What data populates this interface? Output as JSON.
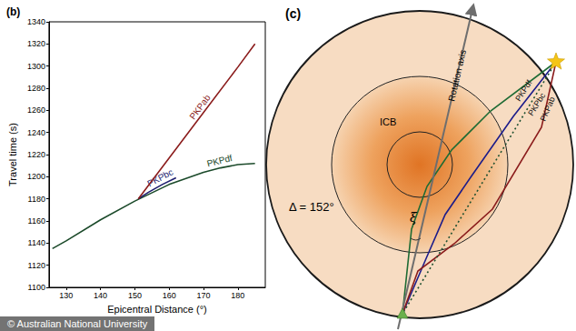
{
  "chart_data": {
    "type": "line",
    "title": "(b)",
    "x_label": "Epicentral Distance (°)",
    "y_label": "Travel time (s)",
    "xlim": [
      125,
      188
    ],
    "xticks": [
      130,
      140,
      150,
      160,
      170,
      180
    ],
    "ylim": [
      1100,
      1340
    ],
    "yticks": [
      1100,
      1120,
      1140,
      1160,
      1180,
      1200,
      1220,
      1240,
      1260,
      1280,
      1300,
      1320,
      1340
    ],
    "grid": false,
    "series": [
      {
        "name": "PKPab",
        "color": "#8b1c1c",
        "x": [
          151,
          160,
          170,
          180,
          185
        ],
        "values": [
          1180,
          1217,
          1258,
          1299,
          1320
        ]
      },
      {
        "name": "PKPbc",
        "color": "#1c1c6e",
        "x": [
          151,
          154,
          158,
          162
        ],
        "values": [
          1180,
          1186,
          1193,
          1199
        ]
      },
      {
        "name": "PKPdf",
        "color": "#1b4a2a",
        "x": [
          126,
          130,
          140,
          150,
          160,
          170,
          175,
          180,
          185
        ],
        "values": [
          1135,
          1142,
          1161,
          1178,
          1193,
          1204,
          1208,
          1211,
          1212
        ]
      }
    ]
  },
  "diagram": {
    "label": "(c)",
    "axis_label": "Rotation axis",
    "boundary_label": "ICB",
    "distance_label": "Δ = 152°",
    "angle_label": "ξ",
    "rays": [
      {
        "name": "PKPdf",
        "color": "#1e6b34"
      },
      {
        "name": "PKPbc",
        "color": "#1c1c8a"
      },
      {
        "name": "PKPab",
        "color": "#8b1c1c"
      }
    ]
  },
  "credit": "© Australian National University"
}
